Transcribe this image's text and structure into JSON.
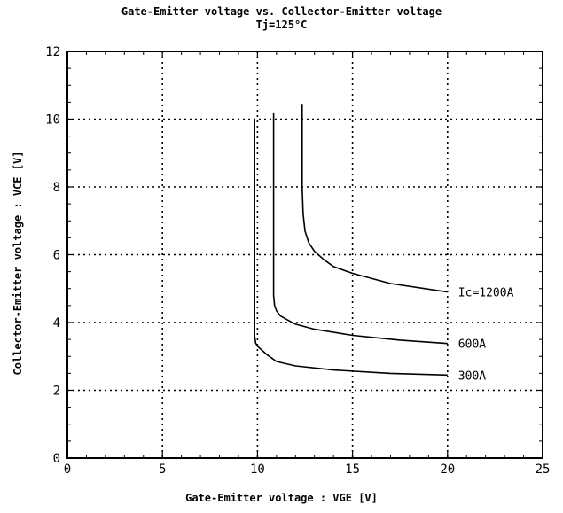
{
  "chart_data": {
    "type": "line",
    "title": "Gate-Emitter voltage vs. Collector-Emitter voltage",
    "subtitle": "Tj=125°C",
    "xlabel": "Gate-Emitter voltage  :  VGE [V]",
    "ylabel": "Collector-Emitter voltage : VCE [V]",
    "xlim": [
      0,
      25
    ],
    "ylim": [
      0,
      12
    ],
    "xticks": [
      "0",
      "5",
      "10",
      "15",
      "20",
      "25"
    ],
    "yticks": [
      "0",
      "2",
      "4",
      "6",
      "8",
      "10",
      "12"
    ],
    "grid": true,
    "series": [
      {
        "name": "300A",
        "x": [
          9.85,
          9.85,
          9.85,
          9.9,
          10.0,
          10.2,
          10.5,
          11.0,
          12.0,
          14.0,
          17.0,
          20.0
        ],
        "y": [
          10.0,
          5.0,
          3.6,
          3.4,
          3.3,
          3.2,
          3.05,
          2.85,
          2.72,
          2.6,
          2.5,
          2.45
        ]
      },
      {
        "name": "600A",
        "x": [
          10.85,
          10.85,
          10.85,
          10.9,
          11.0,
          11.2,
          11.5,
          12.0,
          13.0,
          15.0,
          17.5,
          20.0
        ],
        "y": [
          10.2,
          6.5,
          4.8,
          4.5,
          4.35,
          4.2,
          4.1,
          3.95,
          3.8,
          3.62,
          3.48,
          3.38
        ]
      },
      {
        "name": "Ic=1200A",
        "x": [
          12.35,
          12.35,
          12.4,
          12.5,
          12.7,
          13.0,
          13.5,
          14.0,
          15.0,
          17.0,
          20.0
        ],
        "y": [
          10.45,
          8.0,
          7.2,
          6.7,
          6.35,
          6.1,
          5.85,
          5.65,
          5.45,
          5.15,
          4.9
        ]
      }
    ]
  }
}
